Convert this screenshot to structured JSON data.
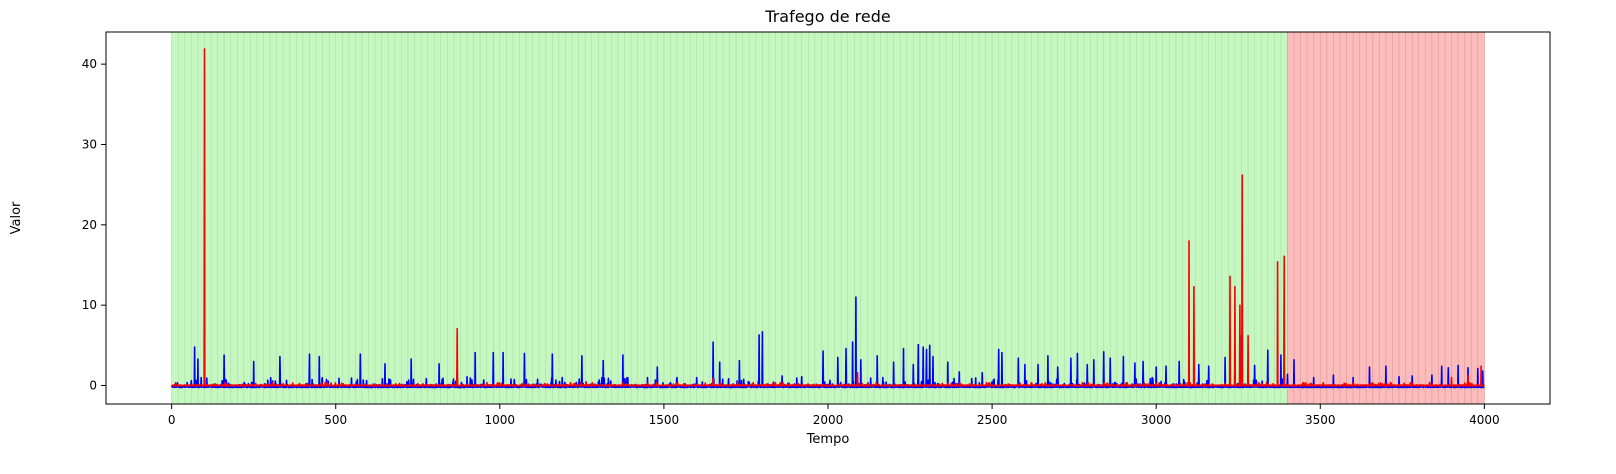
{
  "chart_data": {
    "type": "line",
    "title": "Trafego de rede",
    "xlabel": "Tempo",
    "ylabel": "Valor",
    "xlim": [
      -200,
      4200
    ],
    "ylim": [
      -2.3,
      44
    ],
    "x_ticks": [
      0,
      500,
      1000,
      1500,
      2000,
      2500,
      3000,
      3500,
      4000
    ],
    "y_ticks": [
      0,
      10,
      20,
      30,
      40
    ],
    "grid": false,
    "legend": "none",
    "background_regions": [
      {
        "x_start": 0,
        "x_end": 3400,
        "color": "#c6f7c0",
        "stripe_color": "#a9e3a6",
        "stripe_step": 20
      },
      {
        "x_start": 3400,
        "x_end": 4000,
        "color": "#fbbcbc",
        "stripe_color": "#e69a9a",
        "stripe_step": 20
      }
    ],
    "series": [
      {
        "color": "#0000ff",
        "baseline": -0.25,
        "x_max": 4000,
        "spikes": [
          [
            60,
            0.6
          ],
          [
            70,
            4.8
          ],
          [
            80,
            3.3
          ],
          [
            90,
            1.0
          ],
          [
            160,
            3.8
          ],
          [
            250,
            3.0
          ],
          [
            330,
            3.6
          ],
          [
            420,
            3.9
          ],
          [
            450,
            3.6
          ],
          [
            510,
            0.9
          ],
          [
            575,
            3.9
          ],
          [
            650,
            2.7
          ],
          [
            730,
            3.3
          ],
          [
            815,
            2.7
          ],
          [
            870,
            2.0
          ],
          [
            900,
            1.1
          ],
          [
            925,
            4.1
          ],
          [
            980,
            4.1
          ],
          [
            1010,
            4.1
          ],
          [
            1075,
            4.0
          ],
          [
            1160,
            3.9
          ],
          [
            1250,
            3.7
          ],
          [
            1315,
            3.1
          ],
          [
            1375,
            3.8
          ],
          [
            1390,
            1.0
          ],
          [
            1450,
            1.0
          ],
          [
            1480,
            2.3
          ],
          [
            1540,
            1.0
          ],
          [
            1600,
            1.0
          ],
          [
            1650,
            5.4
          ],
          [
            1670,
            2.9
          ],
          [
            1730,
            3.1
          ],
          [
            1790,
            6.3
          ],
          [
            1800,
            6.7
          ],
          [
            1860,
            1.2
          ],
          [
            1920,
            1.1
          ],
          [
            1985,
            4.3
          ],
          [
            2030,
            3.5
          ],
          [
            2055,
            4.6
          ],
          [
            2075,
            5.4
          ],
          [
            2085,
            11.0
          ],
          [
            2100,
            3.2
          ],
          [
            2150,
            3.7
          ],
          [
            2200,
            2.9
          ],
          [
            2230,
            4.6
          ],
          [
            2260,
            2.6
          ],
          [
            2275,
            5.1
          ],
          [
            2290,
            4.8
          ],
          [
            2300,
            4.5
          ],
          [
            2310,
            5.0
          ],
          [
            2320,
            3.6
          ],
          [
            2365,
            2.9
          ],
          [
            2400,
            1.7
          ],
          [
            2470,
            1.6
          ],
          [
            2520,
            4.5
          ],
          [
            2530,
            4.1
          ],
          [
            2580,
            3.4
          ],
          [
            2600,
            2.6
          ],
          [
            2640,
            2.6
          ],
          [
            2670,
            3.7
          ],
          [
            2700,
            2.3
          ],
          [
            2740,
            3.4
          ],
          [
            2760,
            4.0
          ],
          [
            2790,
            2.6
          ],
          [
            2810,
            3.2
          ],
          [
            2840,
            4.2
          ],
          [
            2860,
            3.4
          ],
          [
            2900,
            3.6
          ],
          [
            2935,
            2.8
          ],
          [
            2960,
            3.0
          ],
          [
            3000,
            2.3
          ],
          [
            3030,
            2.4
          ],
          [
            3070,
            3.0
          ],
          [
            3100,
            2.4
          ],
          [
            3130,
            2.6
          ],
          [
            3160,
            2.4
          ],
          [
            3210,
            3.5
          ],
          [
            3240,
            3.0
          ],
          [
            3260,
            6.2
          ],
          [
            3300,
            2.5
          ],
          [
            3340,
            4.4
          ],
          [
            3380,
            3.8
          ],
          [
            3400,
            1.4
          ],
          [
            3420,
            3.2
          ],
          [
            3480,
            1.0
          ],
          [
            3540,
            1.3
          ],
          [
            3600,
            1.0
          ],
          [
            3650,
            2.3
          ],
          [
            3700,
            2.4
          ],
          [
            3740,
            1.1
          ],
          [
            3780,
            1.2
          ],
          [
            3840,
            1.3
          ],
          [
            3870,
            2.4
          ],
          [
            3890,
            2.2
          ],
          [
            3920,
            2.5
          ],
          [
            3950,
            2.2
          ],
          [
            3980,
            2.1
          ],
          [
            3995,
            1.8
          ]
        ],
        "noise_level": 0.9,
        "noise_level_after": 0.15,
        "noise_change_x": 3400
      },
      {
        "color": "#ff0000",
        "baseline": -0.05,
        "x_max": 4000,
        "spikes": [
          [
            100,
            41.9
          ],
          [
            870,
            7.1
          ],
          [
            1650,
            0.9
          ],
          [
            2090,
            1.6
          ],
          [
            3100,
            18.0
          ],
          [
            3115,
            12.3
          ],
          [
            3225,
            13.6
          ],
          [
            3240,
            12.3
          ],
          [
            3255,
            10.0
          ],
          [
            3262,
            26.2
          ],
          [
            3280,
            6.2
          ],
          [
            3370,
            15.4
          ],
          [
            3390,
            16.1
          ],
          [
            3900,
            1.0
          ],
          [
            3950,
            1.3
          ],
          [
            3990,
            2.4
          ]
        ],
        "noise_level": 0.3,
        "noise_level_after": 0.3,
        "noise_change_x": 3400
      }
    ]
  }
}
